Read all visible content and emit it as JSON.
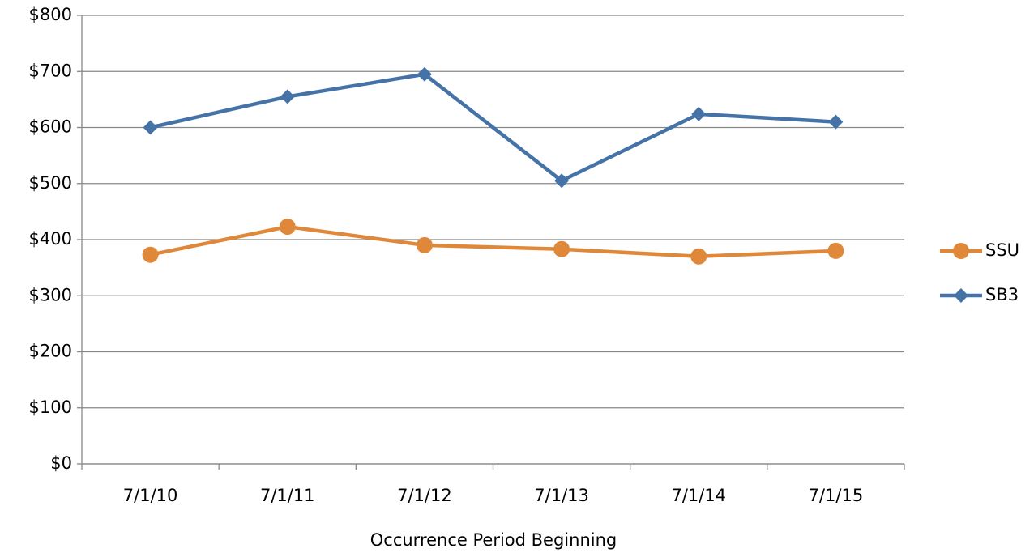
{
  "chart_data": {
    "type": "line",
    "x_label": "Occurrence Period Beginning",
    "categories": [
      "7/1/10",
      "7/1/11",
      "7/1/12",
      "7/1/13",
      "7/1/14",
      "7/1/15"
    ],
    "series": [
      {
        "name": "SSU",
        "color": "#e0883a",
        "marker": "circle",
        "values": [
          373,
          423,
          390,
          383,
          370,
          380
        ]
      },
      {
        "name": "SB3",
        "color": "#4573a7",
        "marker": "diamond",
        "values": [
          600,
          655,
          695,
          505,
          624,
          610
        ]
      }
    ],
    "ylim": [
      0,
      800
    ],
    "yticks": [
      {
        "value": 0,
        "label": "$0"
      },
      {
        "value": 100,
        "label": "$100"
      },
      {
        "value": 200,
        "label": "$200"
      },
      {
        "value": 300,
        "label": "$300"
      },
      {
        "value": 400,
        "label": "$400"
      },
      {
        "value": 500,
        "label": "$500"
      },
      {
        "value": 600,
        "label": "$600"
      },
      {
        "value": 700,
        "label": "$700"
      },
      {
        "value": 800,
        "label": "$800"
      }
    ],
    "grid": true,
    "legend": "right"
  }
}
